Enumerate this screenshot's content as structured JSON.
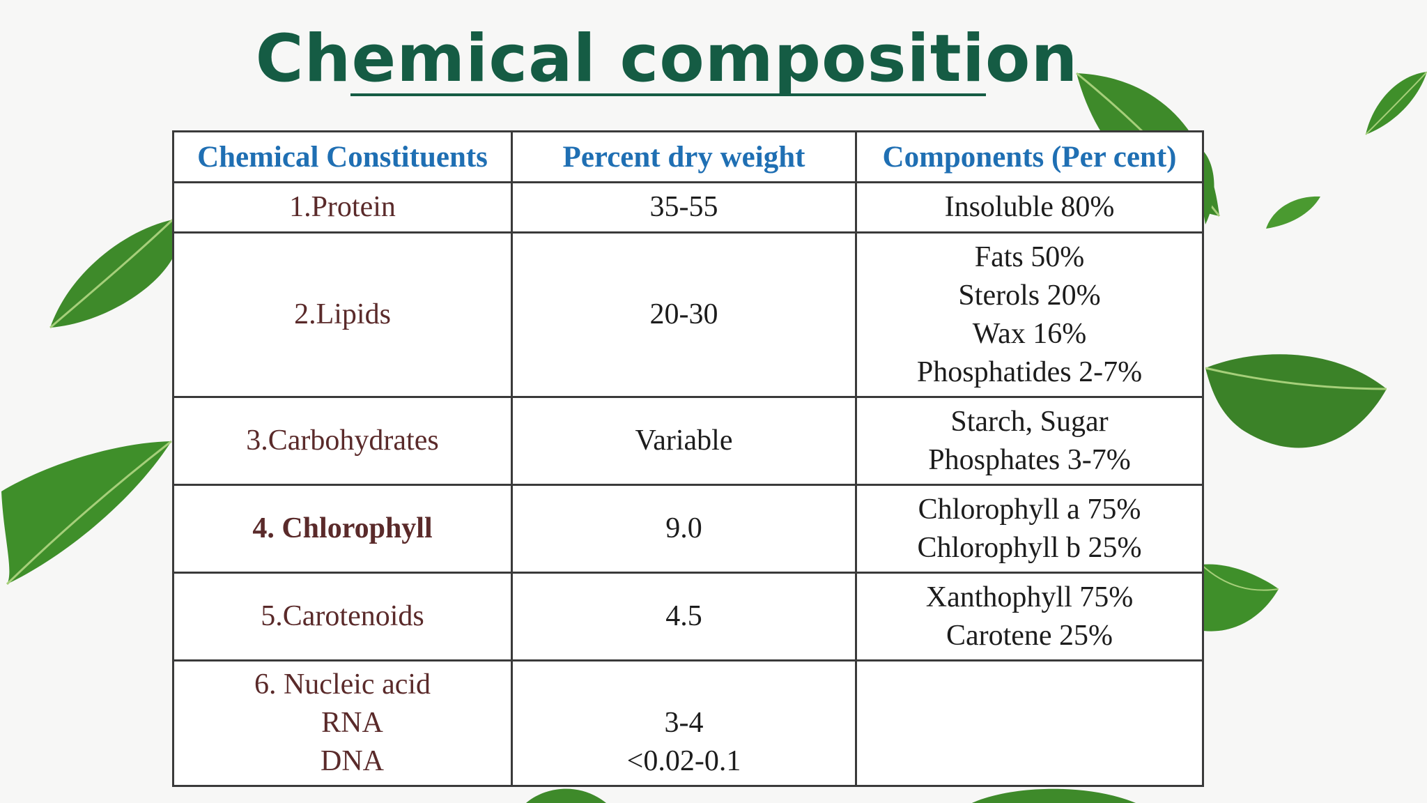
{
  "title": "Chemical composition",
  "table": {
    "headers": [
      "Chemical Constituents",
      "Percent dry weight",
      "Components (Per cent)"
    ],
    "rows": [
      {
        "constituent": [
          "1.Protein"
        ],
        "percent": [
          "35-55"
        ],
        "components": [
          "Insoluble 80%"
        ]
      },
      {
        "constituent": [
          "2.Lipids"
        ],
        "percent": [
          "20-30"
        ],
        "components": [
          "Fats 50%",
          "Sterols 20%",
          "Wax 16%",
          "Phosphatides 2-7%"
        ]
      },
      {
        "constituent": [
          "3.Carbohydrates"
        ],
        "percent": [
          "Variable"
        ],
        "components": [
          "Starch, Sugar",
          "Phosphates 3-7%"
        ]
      },
      {
        "constituent": [
          "4. Chlorophyll"
        ],
        "percent": [
          "9.0"
        ],
        "components": [
          "Chlorophyll a 75%",
          "Chlorophyll b 25%"
        ]
      },
      {
        "constituent": [
          "5.Carotenoids"
        ],
        "percent": [
          "4.5"
        ],
        "components": [
          "Xanthophyll 75%",
          "Carotene 25%"
        ]
      },
      {
        "constituent": [
          "6. Nucleic acid",
          "RNA",
          "DNA"
        ],
        "percent": [
          "3-4",
          "<0.02-0.1"
        ],
        "components": []
      }
    ]
  },
  "colors": {
    "title": "#155c44",
    "header": "#1f6fb3",
    "constituent": "#5a2a2a",
    "leaf": "#3f8f2a"
  }
}
